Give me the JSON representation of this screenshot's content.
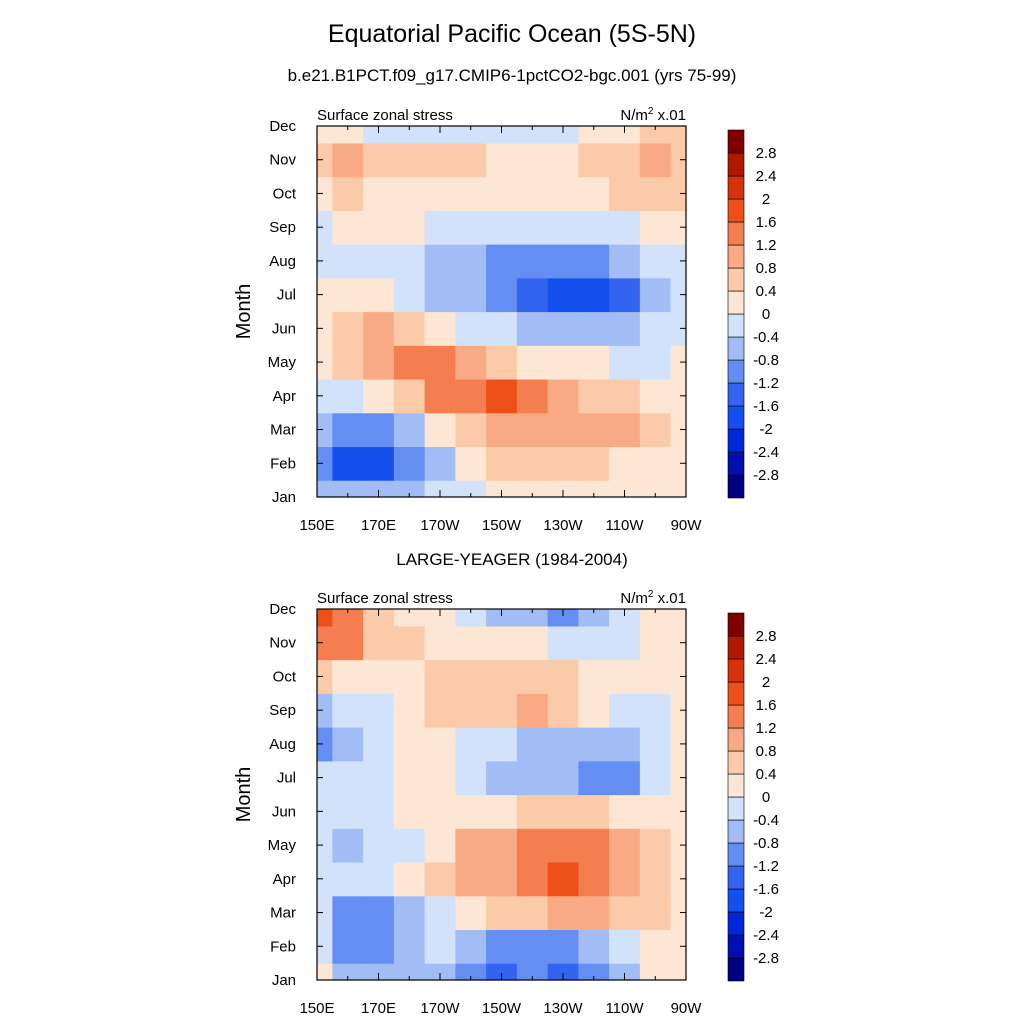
{
  "figure": {
    "title": "Equatorial Pacific Ocean (5S-5N)"
  },
  "colorbar": {
    "levels": [
      -2.8,
      -2.4,
      -2,
      -1.6,
      -1.2,
      -0.8,
      -0.4,
      0,
      0.4,
      0.8,
      1.2,
      1.6,
      2,
      2.4,
      2.8
    ],
    "labels": [
      "2.8",
      "2.4",
      "2",
      "1.6",
      "1.2",
      "0.8",
      "0.4",
      "0",
      "-0.4",
      "-0.8",
      "-1.2",
      "-1.6",
      "-2",
      "-2.4",
      "-2.8"
    ],
    "colors": [
      "#000080",
      "#0010b0",
      "#0028d8",
      "#1450ee",
      "#3264f0",
      "#648ef2",
      "#a2bcf5",
      "#d2e2fa",
      "#fde6d4",
      "#fbcaa8",
      "#f9aa84",
      "#f47e50",
      "#ec5018",
      "#d83008",
      "#b01800",
      "#800000"
    ]
  },
  "chart_data": [
    {
      "type": "heatmap",
      "title": "b.e21.B1PCT.f09_g17.CMIP6-1pctCO2-bgc.001 (yrs 75-99)",
      "left_label": "Surface zonal stress",
      "right_label": "N/m² x.01",
      "ylabel": "Month",
      "xlabel": "",
      "x_ticks": [
        "150E",
        "170E",
        "170W",
        "150W",
        "130W",
        "110W",
        "90W"
      ],
      "y_ticks": [
        "Jan",
        "Feb",
        "Mar",
        "Apr",
        "May",
        "Jun",
        "Jul",
        "Aug",
        "Sep",
        "Oct",
        "Nov",
        "Dec"
      ],
      "x_values": [
        150,
        160,
        170,
        180,
        190,
        200,
        210,
        220,
        230,
        240,
        250,
        260,
        270
      ],
      "x_units": "degrees east longitude",
      "rows": [
        {
          "month": "Jan",
          "values": [
            -0.6,
            -0.8,
            -0.8,
            -0.6,
            -0.4,
            -0.1,
            0.1,
            0.2,
            0.2,
            0.1,
            0.1,
            0.2,
            0.1
          ]
        },
        {
          "month": "Feb",
          "values": [
            -1.1,
            -1.8,
            -1.7,
            -1.1,
            -0.5,
            0.2,
            0.5,
            0.6,
            0.5,
            0.4,
            0.3,
            0.2,
            0.2
          ]
        },
        {
          "month": "Mar",
          "values": [
            -0.7,
            -1.0,
            -1.0,
            -0.5,
            0.1,
            0.6,
            0.9,
            1.0,
            1.0,
            0.9,
            0.9,
            0.6,
            0.3
          ]
        },
        {
          "month": "Apr",
          "values": [
            -0.1,
            -0.1,
            0.2,
            0.7,
            1.2,
            1.5,
            1.7,
            1.4,
            1.0,
            0.7,
            0.5,
            0.3,
            0.2
          ]
        },
        {
          "month": "May",
          "values": [
            0.3,
            0.5,
            0.9,
            1.2,
            1.3,
            1.1,
            0.7,
            0.3,
            0.1,
            0.0,
            -0.1,
            -0.1,
            0.1
          ]
        },
        {
          "month": "Jun",
          "values": [
            0.3,
            0.6,
            0.8,
            0.7,
            0.3,
            -0.1,
            -0.4,
            -0.7,
            -0.8,
            -0.8,
            -0.6,
            -0.4,
            -0.2
          ]
        },
        {
          "month": "Jul",
          "values": [
            0.1,
            0.2,
            0.1,
            -0.2,
            -0.5,
            -0.8,
            -1.2,
            -1.6,
            -1.8,
            -2.0,
            -1.6,
            -0.8,
            -0.3
          ]
        },
        {
          "month": "Aug",
          "values": [
            -0.2,
            -0.3,
            -0.3,
            -0.4,
            -0.6,
            -0.8,
            -1.0,
            -1.1,
            -1.1,
            -0.9,
            -0.6,
            -0.3,
            -0.1
          ]
        },
        {
          "month": "Sep",
          "values": [
            -0.3,
            0.1,
            0.2,
            0.1,
            -0.1,
            -0.3,
            -0.4,
            -0.4,
            -0.3,
            -0.2,
            -0.1,
            0.1,
            0.2
          ]
        },
        {
          "month": "Oct",
          "values": [
            0.3,
            0.4,
            0.3,
            0.3,
            0.3,
            0.2,
            0.2,
            0.1,
            0.2,
            0.3,
            0.5,
            0.6,
            0.6
          ]
        },
        {
          "month": "Nov",
          "values": [
            0.6,
            0.9,
            0.7,
            0.6,
            0.5,
            0.4,
            0.1,
            0.0,
            0.1,
            0.4,
            0.7,
            0.8,
            0.7
          ]
        },
        {
          "month": "Dec",
          "values": [
            0.2,
            0.1,
            -0.1,
            -0.2,
            -0.1,
            -0.2,
            -0.3,
            -0.2,
            -0.1,
            0.1,
            0.3,
            0.4,
            0.4
          ]
        }
      ]
    },
    {
      "type": "heatmap",
      "title": "LARGE-YEAGER (1984-2004)",
      "left_label": "Surface zonal stress",
      "right_label": "N/m² x.01",
      "ylabel": "Month",
      "xlabel": "",
      "x_ticks": [
        "150E",
        "170E",
        "170W",
        "150W",
        "130W",
        "110W",
        "90W"
      ],
      "y_ticks": [
        "Jan",
        "Feb",
        "Mar",
        "Apr",
        "May",
        "Jun",
        "Jul",
        "Aug",
        "Sep",
        "Oct",
        "Nov",
        "Dec"
      ],
      "x_values": [
        150,
        160,
        170,
        180,
        190,
        200,
        210,
        220,
        230,
        240,
        250,
        260,
        270
      ],
      "x_units": "degrees east longitude",
      "rows": [
        {
          "month": "Jan",
          "values": [
            0.2,
            -0.5,
            -0.7,
            -0.6,
            -0.8,
            -1.2,
            -1.4,
            -1.2,
            -1.5,
            -1.0,
            -0.6,
            0.1,
            0.2
          ]
        },
        {
          "month": "Feb",
          "values": [
            -0.4,
            -0.9,
            -0.9,
            -0.8,
            -0.4,
            -0.8,
            -1.0,
            -0.9,
            -0.9,
            -0.7,
            -0.4,
            0.2,
            0.3
          ]
        },
        {
          "month": "Mar",
          "values": [
            -0.4,
            -0.9,
            -1.0,
            -0.6,
            -0.2,
            0.2,
            0.5,
            0.6,
            0.8,
            0.8,
            0.6,
            0.4,
            0.2
          ]
        },
        {
          "month": "Apr",
          "values": [
            -0.2,
            -0.4,
            -0.2,
            0.2,
            0.7,
            1.0,
            1.1,
            1.3,
            1.6,
            1.5,
            1.0,
            0.5,
            0.2
          ]
        },
        {
          "month": "May",
          "values": [
            -0.2,
            -0.5,
            -0.4,
            -0.1,
            0.3,
            0.9,
            1.0,
            1.2,
            1.2,
            1.4,
            1.1,
            0.5,
            0.3
          ]
        },
        {
          "month": "Jun",
          "values": [
            -0.1,
            -0.3,
            -0.2,
            0.0,
            0.2,
            0.3,
            0.3,
            0.4,
            0.4,
            0.4,
            0.3,
            0.0,
            0.1
          ]
        },
        {
          "month": "Jul",
          "values": [
            -0.2,
            -0.3,
            -0.2,
            0.1,
            0.1,
            -0.1,
            -0.5,
            -0.6,
            -0.5,
            -0.9,
            -1.0,
            -0.4,
            0.0
          ]
        },
        {
          "month": "Aug",
          "values": [
            -0.9,
            -0.6,
            -0.2,
            0.1,
            0.1,
            -0.2,
            -0.3,
            -0.5,
            -0.6,
            -0.6,
            -0.5,
            -0.2,
            0.1
          ]
        },
        {
          "month": "Sep",
          "values": [
            -0.7,
            -0.3,
            -0.1,
            0.1,
            0.5,
            0.6,
            0.7,
            0.8,
            0.5,
            0.1,
            -0.2,
            -0.1,
            0.2
          ]
        },
        {
          "month": "Oct",
          "values": [
            0.5,
            0.3,
            0.1,
            0.3,
            0.6,
            0.5,
            0.5,
            0.7,
            0.4,
            0.2,
            0.0,
            0.0,
            0.2
          ]
        },
        {
          "month": "Nov",
          "values": [
            1.3,
            1.2,
            0.6,
            0.4,
            0.3,
            0.2,
            0.2,
            0.1,
            -0.2,
            -0.4,
            -0.4,
            0.0,
            0.3
          ]
        },
        {
          "month": "Dec",
          "values": [
            1.6,
            1.5,
            0.7,
            0.2,
            0.0,
            -0.3,
            -0.6,
            -0.8,
            -1.0,
            -0.8,
            -0.3,
            0.1,
            0.2
          ]
        }
      ]
    }
  ]
}
